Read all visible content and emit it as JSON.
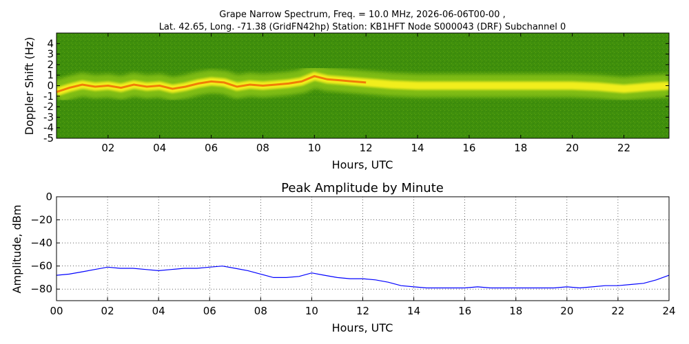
{
  "header": {
    "title_line1": "Grape Narrow Spectrum, Freq. = 10.0 MHz, 2026-06-06T00-00 ,",
    "title_line2": "Lat.  42.65, Long. -71.38 (GridFN42hp) Station: KB1HFT Node S000043 (DRF) Subchannel 0"
  },
  "colors": {
    "spectrum_background": "#3f8f0c",
    "spectrum_mid": "#8ac414",
    "spectrum_high": "#f2ee1a",
    "spectrum_peak": "#f07d08",
    "spectrum_max": "#e8230c",
    "amplitude_line": "#0000ff"
  },
  "chart_data": [
    {
      "type": "heatmap",
      "title": "",
      "xlabel": "Hours, UTC",
      "ylabel": "Doppler Shift (Hz)",
      "xlim": [
        0,
        23.75
      ],
      "ylim": [
        -5,
        5
      ],
      "grid": false,
      "x_ticks": [
        "02",
        "04",
        "06",
        "08",
        "10",
        "12",
        "14",
        "16",
        "18",
        "20",
        "22"
      ],
      "x_tick_values": [
        2,
        4,
        6,
        8,
        10,
        12,
        14,
        16,
        18,
        20,
        22
      ],
      "y_ticks": [
        "4",
        "3",
        "2",
        "1",
        "0",
        "-1",
        "-2",
        "-3",
        "-4",
        "-5"
      ],
      "y_tick_values": [
        4,
        3,
        2,
        1,
        0,
        -1,
        -2,
        -3,
        -4,
        -5
      ],
      "peak_doppler_trace": {
        "x": [
          0,
          0.5,
          1,
          1.5,
          2,
          2.5,
          3,
          3.5,
          4,
          4.5,
          5,
          5.5,
          6,
          6.5,
          7,
          7.5,
          8,
          8.5,
          9,
          9.5,
          10,
          10.5,
          11,
          11.5,
          12,
          12.5,
          13,
          14,
          15,
          16,
          17,
          18,
          19,
          20,
          21,
          22,
          22.5,
          23,
          23.75
        ],
        "y": [
          -0.6,
          -0.2,
          0.1,
          -0.1,
          0.0,
          -0.2,
          0.1,
          -0.1,
          0.0,
          -0.3,
          -0.1,
          0.2,
          0.4,
          0.3,
          -0.1,
          0.1,
          0.0,
          0.1,
          0.2,
          0.4,
          0.9,
          0.6,
          0.5,
          0.4,
          0.3,
          0.2,
          0.1,
          0.0,
          0.0,
          0.0,
          0.0,
          0.0,
          0.0,
          0.0,
          -0.1,
          -0.3,
          -0.2,
          -0.1,
          0.0
        ]
      }
    },
    {
      "type": "line",
      "title": "Peak Amplitude by Minute",
      "xlabel": "Hours, UTC",
      "ylabel": "Amplitude, dBm",
      "xlim": [
        0,
        24
      ],
      "ylim": [
        -90,
        0
      ],
      "grid": true,
      "x_ticks": [
        "00",
        "02",
        "04",
        "06",
        "08",
        "10",
        "12",
        "14",
        "16",
        "18",
        "20",
        "22",
        "24"
      ],
      "x_tick_values": [
        0,
        2,
        4,
        6,
        8,
        10,
        12,
        14,
        16,
        18,
        20,
        22,
        24
      ],
      "y_ticks": [
        "0",
        "−20",
        "−40",
        "−60",
        "−80"
      ],
      "y_tick_values": [
        0,
        -20,
        -40,
        -60,
        -80
      ],
      "series": [
        {
          "x": [
            0,
            0.5,
            1,
            1.5,
            2,
            2.5,
            3,
            3.5,
            4,
            4.5,
            5,
            5.5,
            6,
            6.5,
            7,
            7.5,
            8,
            8.5,
            9,
            9.5,
            10,
            10.5,
            11,
            11.5,
            12,
            12.5,
            13,
            13.5,
            14,
            14.5,
            15,
            15.5,
            16,
            16.5,
            17,
            17.5,
            18,
            18.5,
            19,
            19.5,
            20,
            20.5,
            21,
            21.5,
            22,
            22.5,
            23,
            23.5,
            24
          ],
          "y": [
            -68,
            -67,
            -65,
            -63,
            -61,
            -62,
            -62,
            -63,
            -64,
            -63,
            -62,
            -62,
            -61,
            -60,
            -62,
            -64,
            -67,
            -70,
            -70,
            -69,
            -66,
            -68,
            -70,
            -71,
            -71,
            -72,
            -74,
            -77,
            -78,
            -79,
            -79,
            -79,
            -79,
            -78,
            -79,
            -79,
            -79,
            -79,
            -79,
            -79,
            -78,
            -79,
            -78,
            -77,
            -77,
            -76,
            -75,
            -72,
            -68
          ]
        }
      ]
    }
  ]
}
